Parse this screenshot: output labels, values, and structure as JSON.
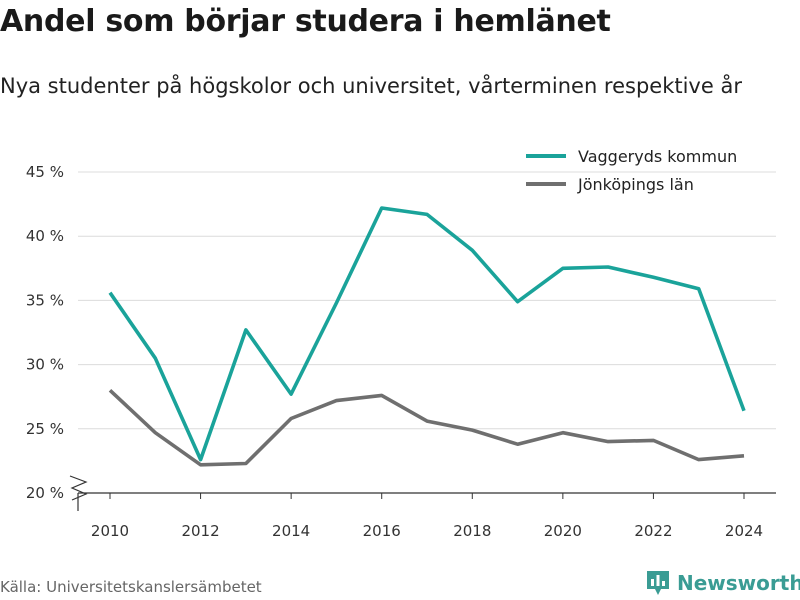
{
  "title": "Andel som börjar studera i hemlänet",
  "subtitle": "Nya studenter på högskolor och universitet, vårterminen respektive år",
  "source": "Källa: Universitetskanslersämbetet",
  "brand": {
    "name": "Newsworthy",
    "icon": "bar-chart-logo-icon",
    "color": "#3a9c94"
  },
  "chart_data": {
    "type": "line",
    "x": [
      2010,
      2011,
      2012,
      2013,
      2014,
      2015,
      2016,
      2017,
      2018,
      2019,
      2020,
      2021,
      2022,
      2023,
      2024
    ],
    "series": [
      {
        "name": "Vaggeryds kommun",
        "color": "#1aa39a",
        "values": [
          35.6,
          30.5,
          22.6,
          32.7,
          27.7,
          34.8,
          42.2,
          41.7,
          38.9,
          34.9,
          37.5,
          37.6,
          36.8,
          35.9,
          26.4
        ]
      },
      {
        "name": "Jönköpings län",
        "color": "#6f6f6f",
        "values": [
          28.0,
          24.7,
          22.2,
          22.3,
          25.8,
          27.2,
          27.6,
          25.6,
          24.9,
          23.8,
          24.7,
          24.0,
          24.1,
          22.6,
          22.9
        ]
      }
    ],
    "x_ticks": [
      2010,
      2012,
      2014,
      2016,
      2018,
      2020,
      2022,
      2024
    ],
    "y_ticks": [
      20,
      25,
      30,
      35,
      40,
      45
    ],
    "y_tick_labels": [
      "20 %",
      "25 %",
      "30 %",
      "35 %",
      "40 %",
      "45 %"
    ],
    "ylim": [
      20,
      45
    ],
    "y_axis_break": true,
    "xlabel": "",
    "ylabel": "",
    "grid": true,
    "legend_position": "top-right"
  }
}
